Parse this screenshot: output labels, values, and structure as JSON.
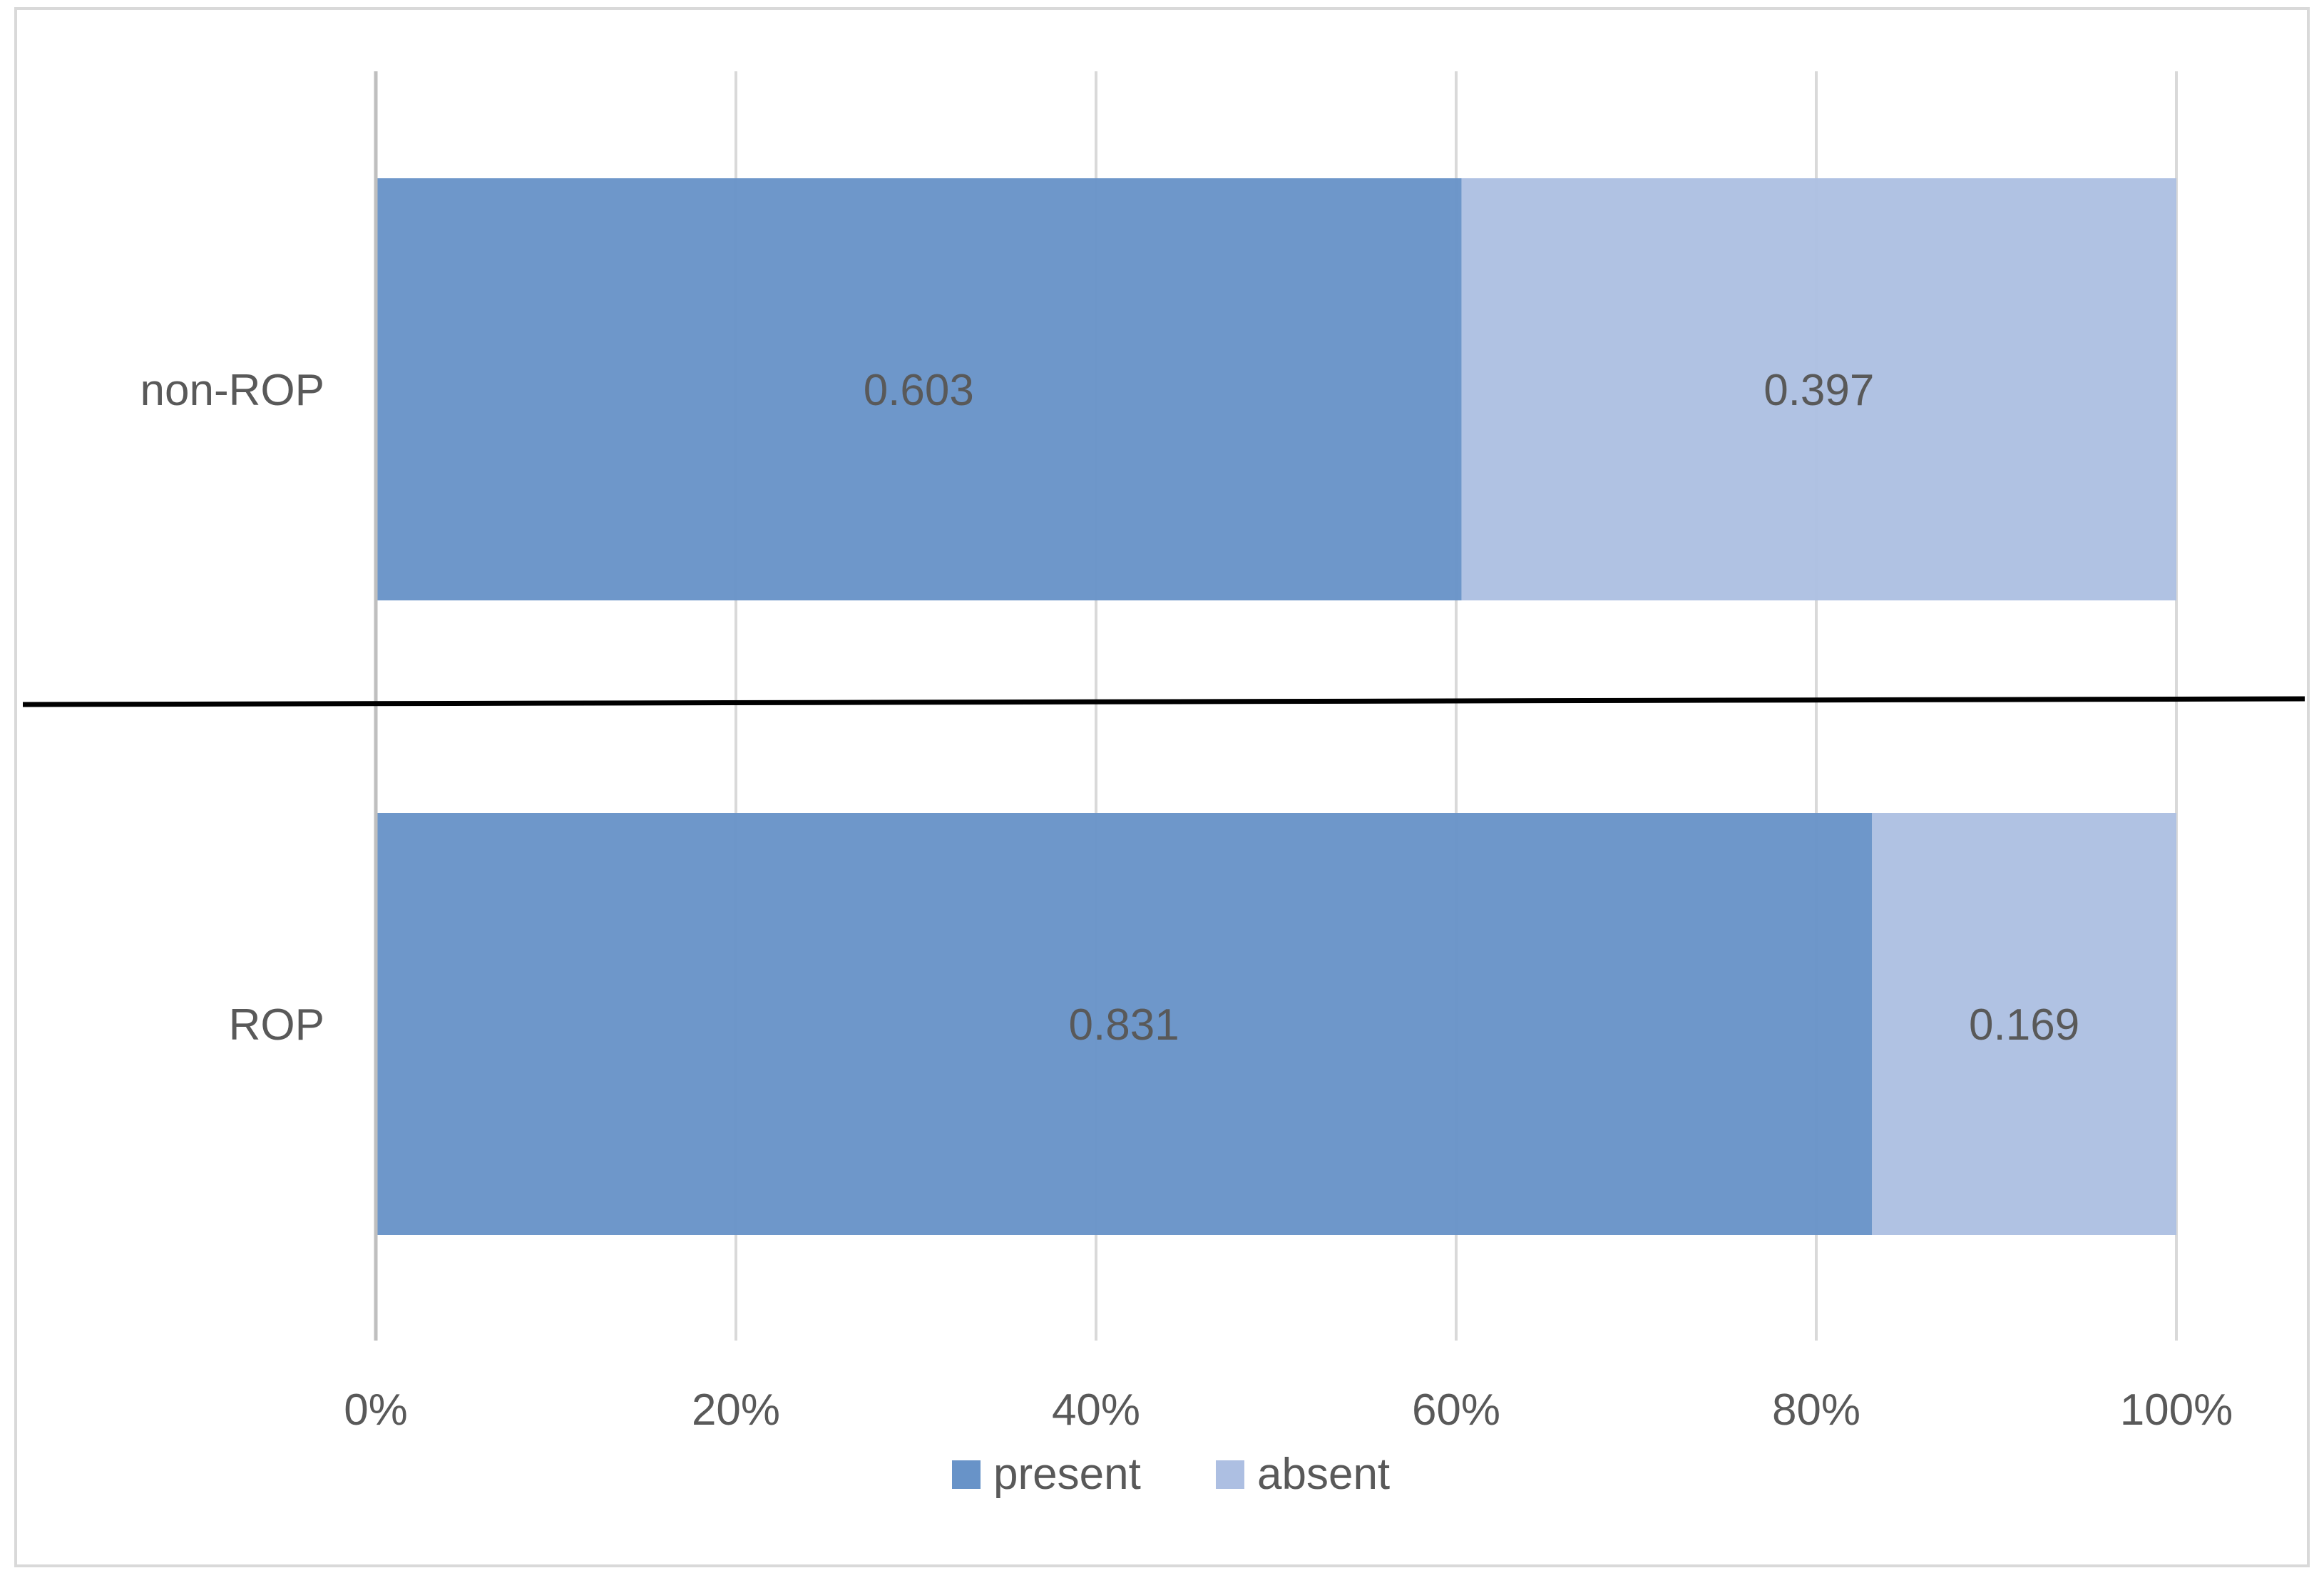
{
  "chart_data": {
    "type": "bar",
    "orientation": "horizontal",
    "stacked": true,
    "normalized": true,
    "categories": [
      "non-ROP",
      "ROP"
    ],
    "series": [
      {
        "name": "present",
        "values": [
          0.603,
          0.831
        ],
        "labels": [
          "0.603",
          "0.831"
        ],
        "color": "#6893c8"
      },
      {
        "name": "absent",
        "values": [
          0.397,
          0.169
        ],
        "labels": [
          "0.397",
          "0.169"
        ],
        "color": "#adbfe2"
      }
    ],
    "x_ticks": [
      "0%",
      "20%",
      "40%",
      "60%",
      "80%",
      "100%"
    ],
    "xlim": [
      0,
      1
    ],
    "grid": true,
    "legend_position": "bottom",
    "separator_line": true,
    "colors": {
      "axis_line": "#bfbfbf",
      "grid": "#d9d9d9",
      "frame": "#d9d9d9",
      "text": "#595959",
      "separator": "#000000"
    }
  }
}
